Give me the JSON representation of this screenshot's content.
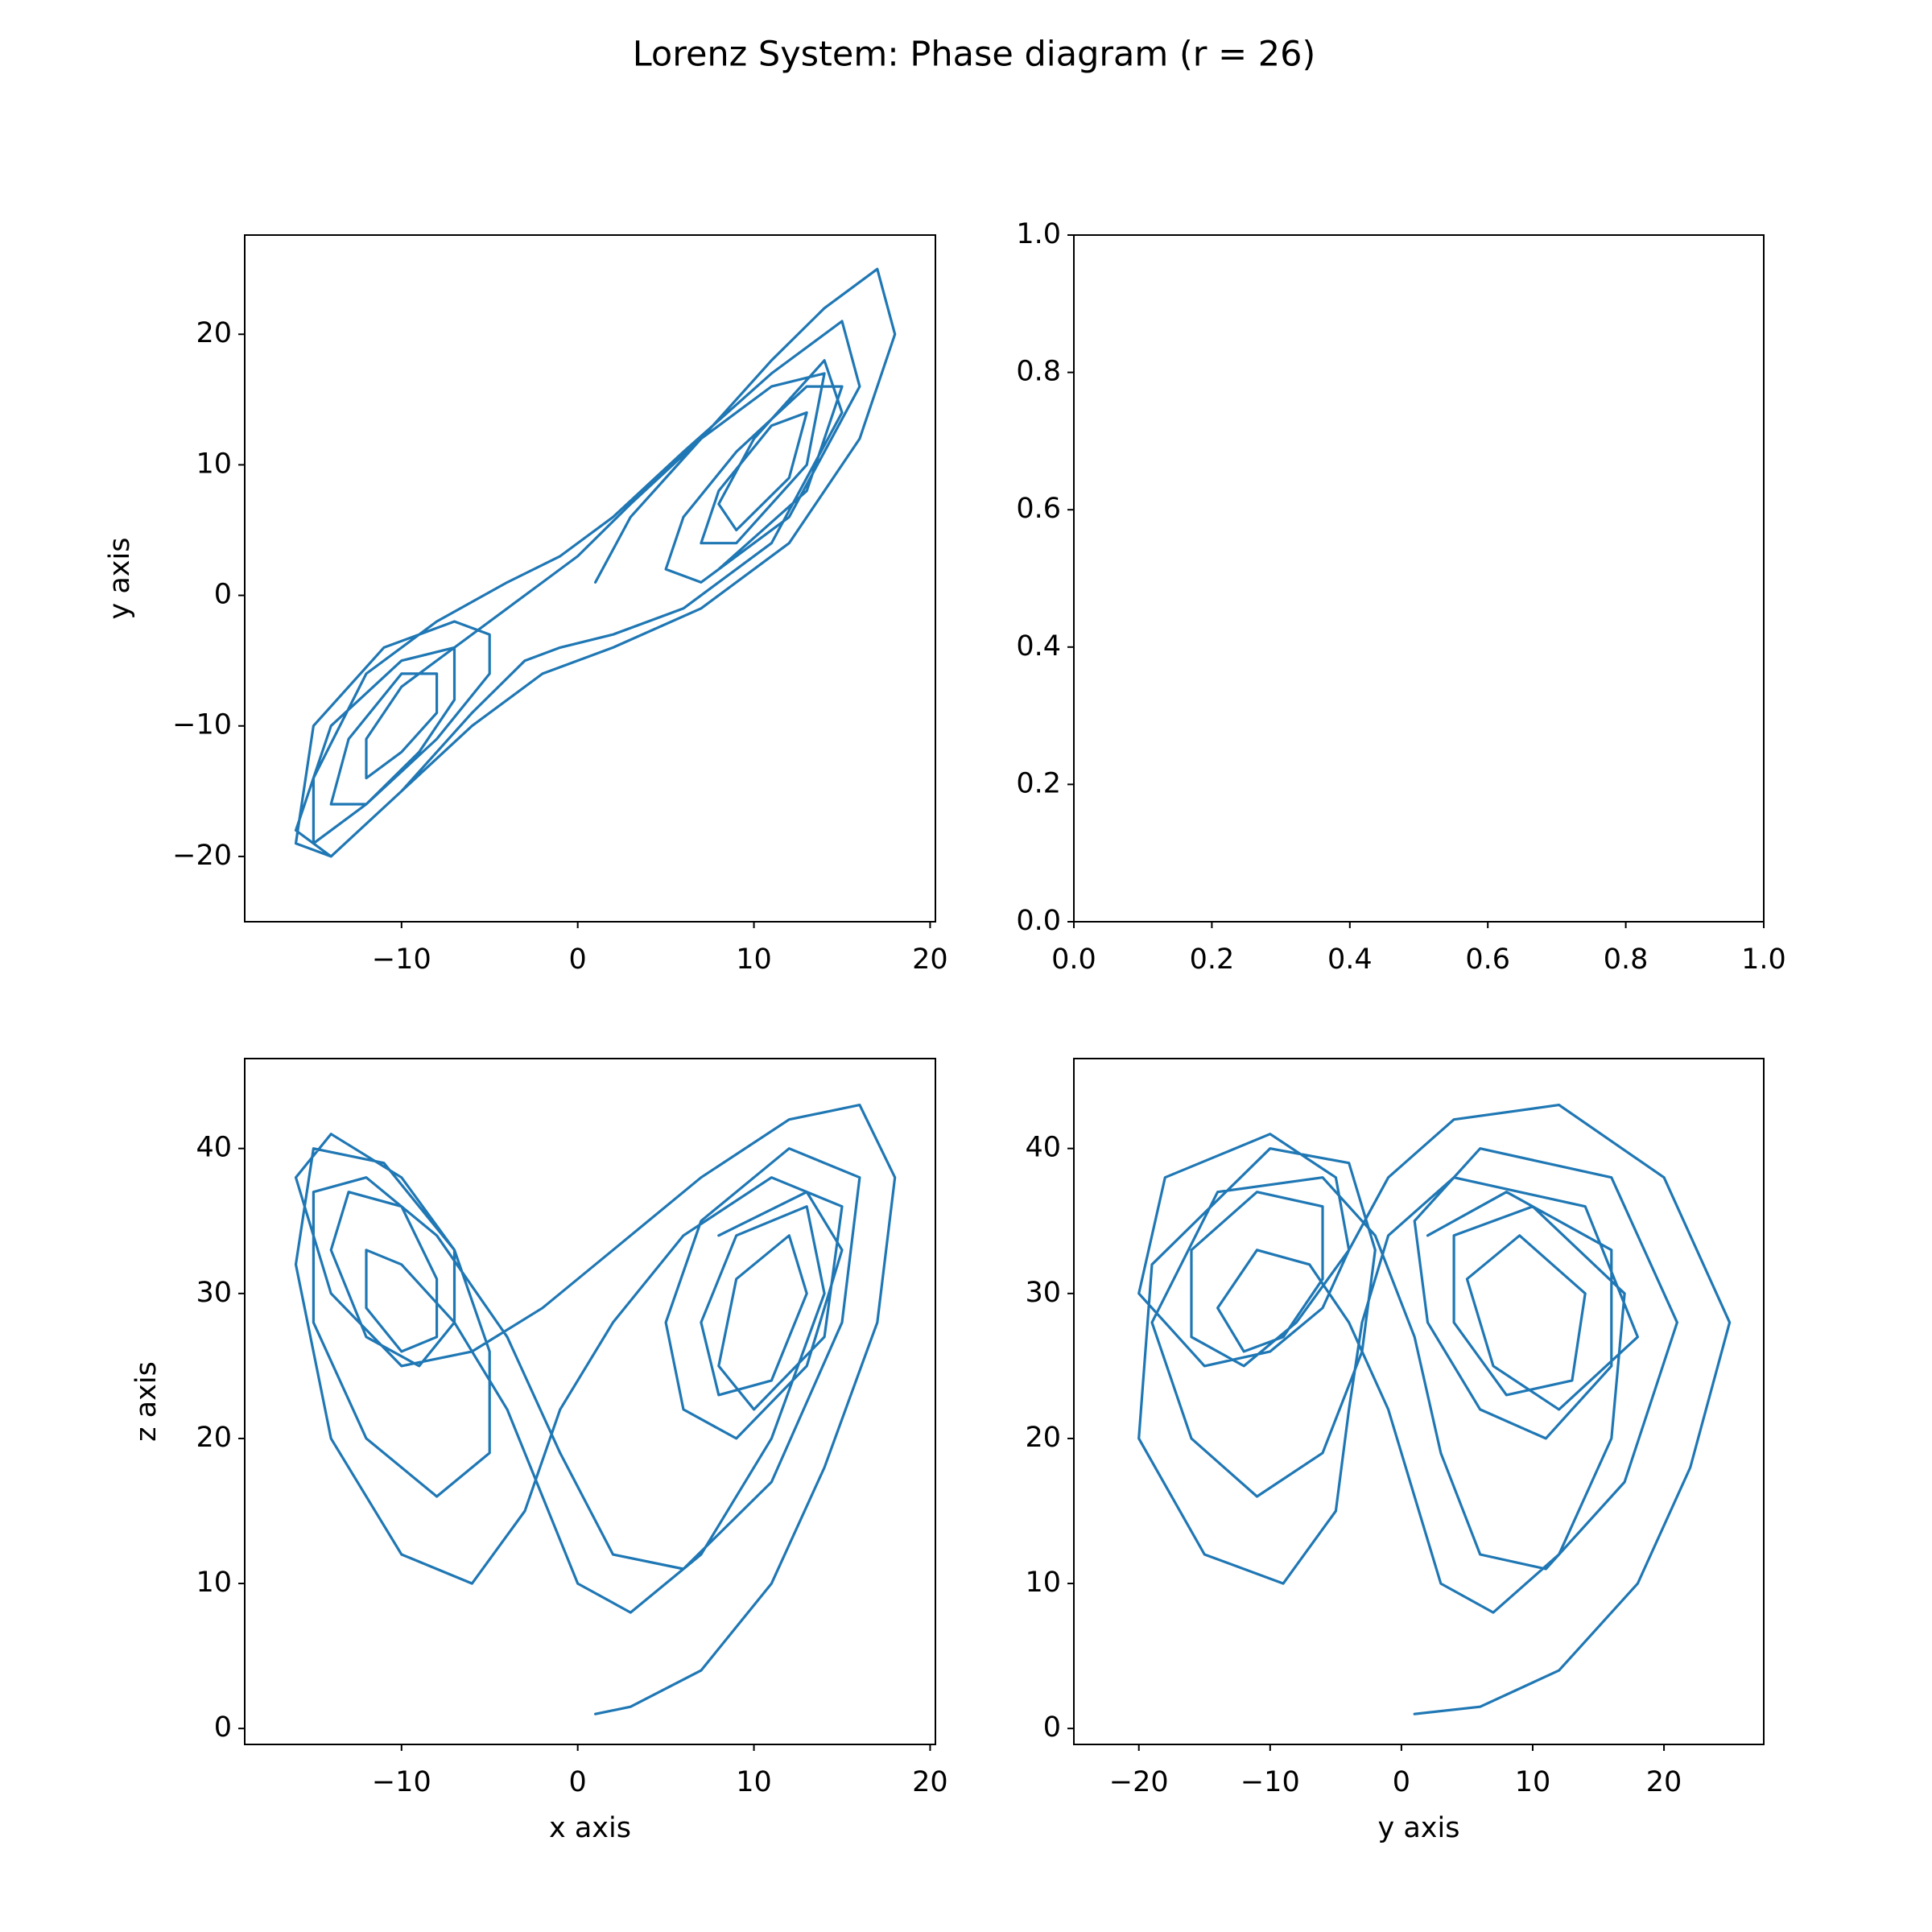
{
  "title": "Lorenz System: Phase diagram (r = 26)",
  "chart_data": [
    {
      "type": "line",
      "ylabel": "y axis",
      "xlim": [
        -18.9,
        20.3
      ],
      "ylim": [
        -25.0,
        27.6
      ],
      "xticks": [
        {
          "value": -10,
          "label": "−10"
        },
        0,
        10,
        20
      ],
      "yticks": [
        {
          "value": -20,
          "label": "−20"
        },
        {
          "value": -10,
          "label": "−10"
        },
        0,
        10,
        20
      ],
      "x": [
        1,
        3,
        7,
        11,
        14,
        17,
        18,
        16,
        12,
        7,
        2,
        -2,
        -6,
        -10,
        -14,
        -16,
        -14,
        -10,
        -7,
        -7,
        -9,
        -12,
        -14,
        -13,
        -10,
        -8,
        -8,
        -10,
        -12,
        -12,
        -10,
        -7,
        -4,
        -2,
        0,
        3,
        7,
        11,
        14,
        13,
        9,
        7,
        8,
        11,
        13,
        12,
        9,
        8,
        10,
        14,
        15,
        11,
        6,
        2,
        -1,
        -3,
        -6,
        -10,
        -14,
        -16,
        -15,
        -11,
        -7,
        -5,
        -5,
        -8,
        -12,
        -15,
        -15,
        -12,
        -8,
        -4,
        -1,
        2,
        6,
        11,
        15,
        16,
        12,
        7,
        5,
        6,
        9,
        13,
        15,
        13,
        8
      ],
      "series": [
        {
          "color": "#1f77b4",
          "values": [
            1,
            6,
            12,
            18,
            22,
            25,
            20,
            12,
            4,
            -1,
            -4,
            -6,
            -10,
            -15,
            -20,
            -18,
            -10,
            -5,
            -4,
            -8,
            -12,
            -16,
            -16,
            -11,
            -6,
            -6,
            -9,
            -12,
            -14,
            -11,
            -7,
            -4,
            -1,
            1,
            3,
            7,
            12,
            16,
            17,
            10,
            4,
            4,
            8,
            13,
            14,
            9,
            5,
            7,
            12,
            18,
            14,
            4,
            -1,
            -3,
            -4,
            -5,
            -9,
            -15,
            -20,
            -19,
            -10,
            -4,
            -2,
            -3,
            -6,
            -11,
            -16,
            -19,
            -14,
            -6,
            -2,
            1,
            3,
            6,
            11,
            17,
            21,
            16,
            6,
            1,
            2,
            6,
            11,
            16,
            16,
            8,
            2
          ]
        }
      ]
    },
    {
      "type": "line",
      "xlim": [
        0,
        1
      ],
      "ylim": [
        0,
        1
      ],
      "xticks": [
        {
          "value": 0,
          "label": "0.0"
        },
        {
          "value": 0.2,
          "label": "0.2"
        },
        {
          "value": 0.4,
          "label": "0.4"
        },
        {
          "value": 0.6,
          "label": "0.6"
        },
        {
          "value": 0.8,
          "label": "0.8"
        },
        {
          "value": 1,
          "label": "1.0"
        }
      ],
      "yticks": [
        {
          "value": 0,
          "label": "0.0"
        },
        {
          "value": 0.2,
          "label": "0.2"
        },
        {
          "value": 0.4,
          "label": "0.4"
        },
        {
          "value": 0.6,
          "label": "0.6"
        },
        {
          "value": 0.8,
          "label": "0.8"
        },
        {
          "value": 1,
          "label": "1.0"
        }
      ]
    },
    {
      "type": "line",
      "xlabel": "x axis",
      "ylabel": "z axis",
      "xlim": [
        -18.9,
        20.3
      ],
      "ylim": [
        -1.1,
        46.2
      ],
      "xticks": [
        {
          "value": -10,
          "label": "−10"
        },
        0,
        10,
        20
      ],
      "yticks": [
        0,
        10,
        20,
        30,
        40
      ],
      "x": [
        1,
        3,
        7,
        11,
        14,
        17,
        18,
        16,
        12,
        7,
        2,
        -2,
        -6,
        -10,
        -14,
        -16,
        -14,
        -10,
        -7,
        -7,
        -9,
        -12,
        -14,
        -13,
        -10,
        -8,
        -8,
        -10,
        -12,
        -12,
        -10,
        -7,
        -4,
        -2,
        0,
        3,
        7,
        11,
        14,
        13,
        9,
        7,
        8,
        11,
        13,
        12,
        9,
        8,
        10,
        14,
        15,
        11,
        6,
        2,
        -1,
        -3,
        -6,
        -10,
        -14,
        -16,
        -15,
        -11,
        -7,
        -5,
        -5,
        -8,
        -12,
        -15,
        -15,
        -12,
        -8,
        -4,
        -1,
        2,
        6,
        11,
        15,
        16,
        12,
        7,
        5,
        6,
        9,
        13,
        15,
        13,
        8
      ],
      "series": [
        {
          "color": "#1f77b4",
          "values": [
            1,
            1.5,
            4,
            10,
            18,
            28,
            38,
            43,
            42,
            38,
            33,
            29,
            26,
            25,
            30,
            38,
            41,
            38,
            33,
            28,
            25,
            27,
            33,
            37,
            36,
            31,
            27,
            26,
            29,
            33,
            32,
            28,
            22,
            16,
            10,
            8,
            12,
            20,
            30,
            36,
            34,
            28,
            23,
            24,
            30,
            34,
            31,
            25,
            22,
            27,
            36,
            38,
            34,
            28,
            22,
            15,
            10,
            12,
            20,
            32,
            40,
            39,
            33,
            26,
            19,
            16,
            20,
            28,
            37,
            38,
            34,
            27,
            19,
            12,
            11,
            17,
            28,
            38,
            40,
            35,
            28,
            22,
            20,
            25,
            33,
            37,
            34
          ]
        }
      ]
    },
    {
      "type": "line",
      "xlabel": "y axis",
      "xlim": [
        -24.95,
        27.6
      ],
      "ylim": [
        -1.1,
        46.2
      ],
      "xticks": [
        {
          "value": -20,
          "label": "−20"
        },
        {
          "value": -10,
          "label": "−10"
        },
        0,
        10,
        20
      ],
      "yticks": [
        0,
        10,
        20,
        30,
        40
      ],
      "x": [
        1,
        6,
        12,
        18,
        22,
        25,
        20,
        12,
        4,
        -1,
        -4,
        -6,
        -10,
        -15,
        -20,
        -18,
        -10,
        -5,
        -4,
        -8,
        -12,
        -16,
        -16,
        -11,
        -6,
        -6,
        -9,
        -12,
        -14,
        -11,
        -7,
        -4,
        -1,
        1,
        3,
        7,
        12,
        16,
        17,
        10,
        4,
        4,
        8,
        13,
        14,
        9,
        5,
        7,
        12,
        18,
        14,
        4,
        -1,
        -3,
        -4,
        -5,
        -9,
        -15,
        -20,
        -19,
        -10,
        -4,
        -2,
        -3,
        -6,
        -11,
        -16,
        -19,
        -14,
        -6,
        -2,
        1,
        3,
        6,
        11,
        17,
        21,
        16,
        6,
        1,
        2,
        6,
        11,
        16,
        16,
        8,
        2
      ],
      "series": [
        {
          "color": "#1f77b4",
          "values": [
            1,
            1.5,
            4,
            10,
            18,
            28,
            38,
            43,
            42,
            38,
            33,
            29,
            26,
            25,
            30,
            38,
            41,
            38,
            33,
            28,
            25,
            27,
            33,
            37,
            36,
            31,
            27,
            26,
            29,
            33,
            32,
            28,
            22,
            16,
            10,
            8,
            12,
            20,
            30,
            36,
            34,
            28,
            23,
            24,
            30,
            34,
            31,
            25,
            22,
            27,
            36,
            38,
            34,
            28,
            22,
            15,
            10,
            12,
            20,
            32,
            40,
            39,
            33,
            26,
            19,
            16,
            20,
            28,
            37,
            38,
            34,
            27,
            19,
            12,
            11,
            17,
            28,
            38,
            40,
            35,
            28,
            22,
            20,
            25,
            33,
            37,
            34
          ]
        }
      ]
    }
  ]
}
